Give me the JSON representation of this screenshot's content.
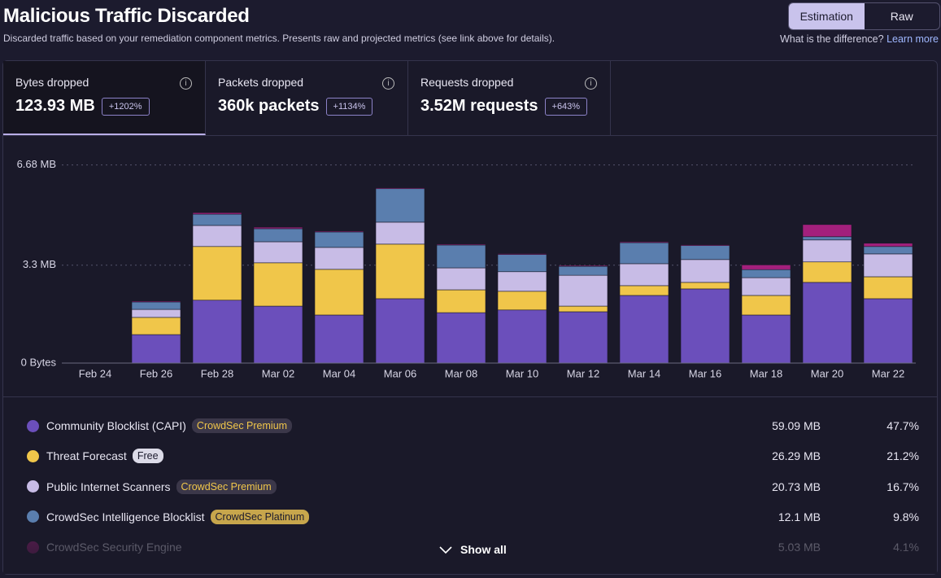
{
  "header": {
    "title": "Malicious Traffic Discarded",
    "subtitle": "Discarded traffic based on your remediation component metrics. Presents raw and projected metrics (see link above for details)."
  },
  "toggle": [
    "Estimation",
    "Raw"
  ],
  "help": {
    "question": "What is the difference?",
    "link": "Learn more"
  },
  "tabs": [
    {
      "label": "Bytes dropped",
      "value": "123.93 MB",
      "change": "+1202%"
    },
    {
      "label": "Packets dropped",
      "value": "360k packets",
      "change": "+1134%"
    },
    {
      "label": "Requests dropped",
      "value": "3.52M requests",
      "change": "+643%"
    }
  ],
  "chart_data": {
    "type": "stacked-bar",
    "categories": [
      "Feb 24",
      "Feb 26",
      "Feb 28",
      "Mar 02",
      "Mar 04",
      "Mar 06",
      "Mar 08",
      "Mar 10",
      "Mar 12",
      "Mar 14",
      "Mar 16",
      "Mar 18",
      "Mar 20",
      "Mar 22"
    ],
    "ylim": [
      0,
      7.3
    ],
    "yticks": [
      {
        "value": 0,
        "label": "0 Bytes"
      },
      {
        "value": 3.3,
        "label": "3.3 MB"
      },
      {
        "value": 6.68,
        "label": "6.68 MB"
      }
    ],
    "grid": true,
    "series": [
      {
        "name": "Community Blocklist (CAPI)",
        "color": "#6b4fbb",
        "values": [
          0,
          0.96,
          2.12,
          1.92,
          1.62,
          2.17,
          1.7,
          1.79,
          1.73,
          2.28,
          2.5,
          1.62,
          2.72,
          2.17
        ]
      },
      {
        "name": "Threat Forecast",
        "color": "#f0c64a",
        "values": [
          0,
          0.58,
          1.81,
          1.46,
          1.54,
          1.84,
          0.77,
          0.63,
          0.19,
          0.33,
          0.22,
          0.66,
          0.69,
          0.74
        ]
      },
      {
        "name": "Public Internet Scanners",
        "color": "#c8bce6",
        "values": [
          0,
          0.27,
          0.71,
          0.71,
          0.74,
          0.74,
          0.74,
          0.66,
          1.04,
          0.74,
          0.77,
          0.6,
          0.74,
          0.77
        ]
      },
      {
        "name": "CrowdSec Intelligence Blocklist",
        "color": "#5a7eae",
        "values": [
          0,
          0.25,
          0.38,
          0.44,
          0.52,
          1.13,
          0.77,
          0.58,
          0.3,
          0.71,
          0.47,
          0.27,
          0.11,
          0.25
        ]
      },
      {
        "name": "CrowdSec Security Engine",
        "color": "#a3207c",
        "values": [
          0,
          0.03,
          0.05,
          0.05,
          0.03,
          0.03,
          0.03,
          0.03,
          0.03,
          0.03,
          0.03,
          0.16,
          0.41,
          0.11
        ]
      }
    ]
  },
  "breakdown": [
    {
      "badge": "CrowdSec Premium",
      "amount": "59.09 MB",
      "share": "47.7%"
    },
    {
      "badge": "Free",
      "amount": "26.29 MB",
      "share": "21.2%"
    },
    {
      "badge": "CrowdSec Premium",
      "amount": "20.73 MB",
      "share": "16.7%"
    },
    {
      "badge": "CrowdSec Platinum",
      "amount": "12.1 MB",
      "share": "9.8%"
    },
    {
      "amount": "5.03 MB",
      "share": "4.1%"
    }
  ],
  "show_all": "Show all"
}
